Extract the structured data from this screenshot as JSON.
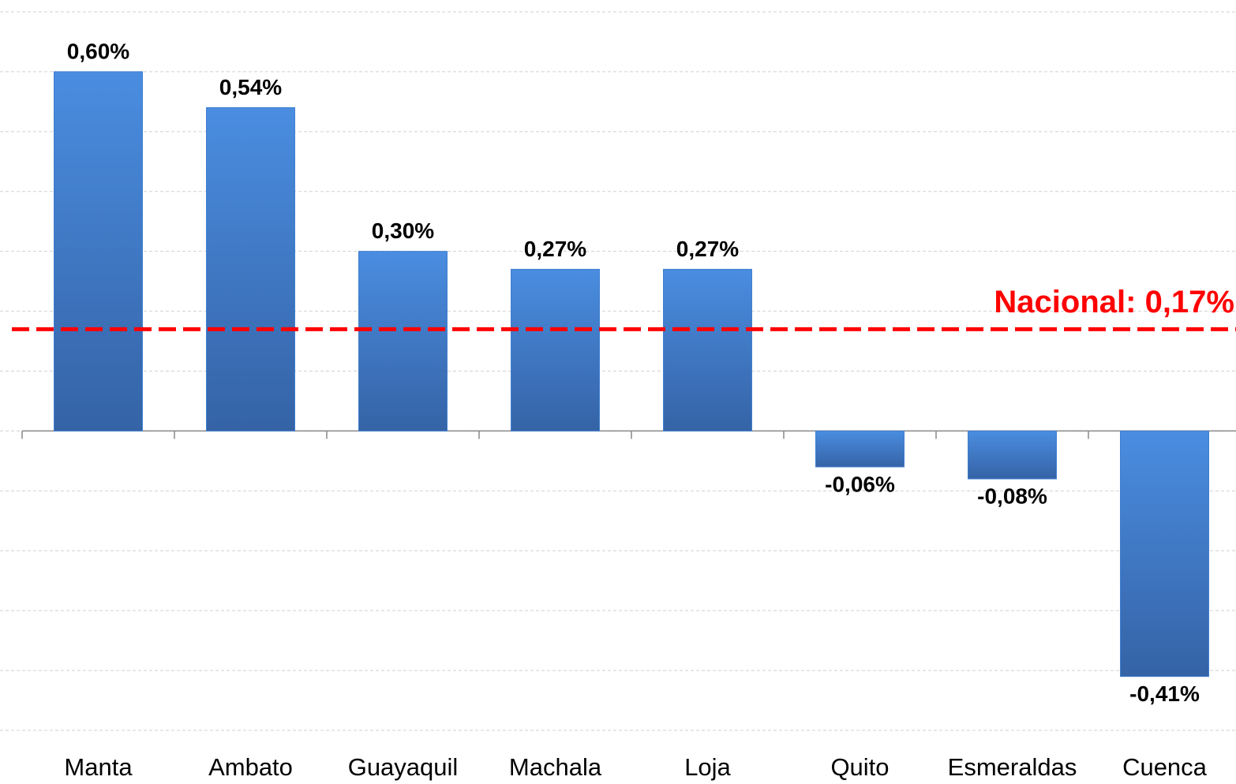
{
  "chart_data": {
    "type": "bar",
    "categories": [
      "Manta",
      "Ambato",
      "Guayaquil",
      "Machala",
      "Loja",
      "Quito",
      "Esmeraldas",
      "Cuenca"
    ],
    "values": [
      0.6,
      0.54,
      0.3,
      0.27,
      0.27,
      -0.06,
      -0.08,
      -0.41
    ],
    "value_labels": [
      "0,60%",
      "0,54%",
      "0,30%",
      "0,27%",
      "0,27%",
      "-0,06%",
      "-0,08%",
      "-0,41%"
    ],
    "color": "#3f7fd0",
    "ylim": [
      -0.5,
      0.7
    ],
    "yticks": [
      -0.5,
      -0.4,
      -0.3,
      -0.2,
      -0.1,
      0,
      0.1,
      0.2,
      0.3,
      0.4,
      0.5,
      0.6,
      0.7
    ],
    "grid": true,
    "reference_line": {
      "value": 0.17,
      "label": "Nacional: 0,17%",
      "color": "#ff0000"
    }
  }
}
